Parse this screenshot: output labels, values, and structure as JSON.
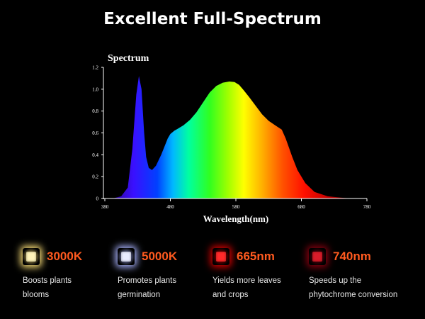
{
  "headline": "Excellent Full-Spectrum",
  "chart_data": {
    "type": "area",
    "title": "Spectrum",
    "xlabel": "Wavelength(nm)",
    "ylabel": "",
    "xlim": [
      380,
      780
    ],
    "ylim": [
      0,
      1.2
    ],
    "x_ticks": [
      380,
      480,
      580,
      680,
      780
    ],
    "y_ticks": [
      0,
      0.2,
      0.4,
      0.6,
      0.8,
      1.0,
      1.2
    ],
    "grid": false,
    "series": [
      {
        "x": [
          392,
          405,
          415,
          422,
          428,
          432,
          436,
          440,
          443,
          447,
          452,
          458,
          466,
          476,
          480,
          486,
          492,
          500,
          510,
          520,
          530,
          540,
          550,
          560,
          570,
          578,
          585,
          592,
          600,
          610,
          620,
          630,
          640,
          650,
          656,
          662,
          666,
          674,
          686,
          700,
          720,
          740,
          755
        ],
        "values": [
          0.0,
          0.02,
          0.1,
          0.45,
          0.95,
          1.12,
          1.0,
          0.6,
          0.38,
          0.28,
          0.26,
          0.3,
          0.4,
          0.55,
          0.59,
          0.62,
          0.64,
          0.67,
          0.72,
          0.79,
          0.88,
          0.97,
          1.03,
          1.06,
          1.07,
          1.065,
          1.04,
          0.99,
          0.93,
          0.85,
          0.77,
          0.71,
          0.67,
          0.63,
          0.55,
          0.45,
          0.38,
          0.26,
          0.14,
          0.06,
          0.02,
          0.008,
          0.0
        ]
      }
    ]
  },
  "leds": [
    {
      "label": "3000K",
      "desc_lines": [
        "Boosts plants",
        "blooms"
      ],
      "color": "#fff3b8",
      "glow": "#ffe27a"
    },
    {
      "label": "5000K",
      "desc_lines": [
        "Promotes plants",
        "germination"
      ],
      "color": "#e8ebff",
      "glow": "#aab4ff"
    },
    {
      "label": "665nm",
      "desc_lines": [
        "Yields more leaves",
        "and crops"
      ],
      "color": "#ff2a2a",
      "glow": "#d40000"
    },
    {
      "label": "740nm",
      "desc_lines": [
        "Speeds up the",
        "phytochrome conversion"
      ],
      "color": "#d81c2a",
      "glow": "#8a0010"
    }
  ],
  "accent": "#ff5a1f"
}
